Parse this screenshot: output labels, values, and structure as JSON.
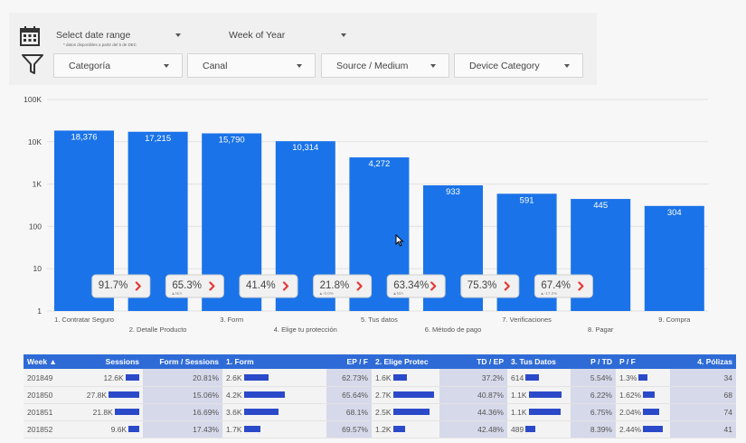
{
  "controls": {
    "date_range": "Select date range",
    "date_note": "* datos disponibles a partir del 5 de DEC",
    "week_of_year": "Week of Year",
    "filters": [
      "Categoría",
      "Canal",
      "Source / Medium",
      "Device Category"
    ]
  },
  "chart_data": {
    "type": "bar",
    "scale": "log",
    "ylim": [
      1,
      100000
    ],
    "y_ticks": [
      "1",
      "10",
      "100",
      "1K",
      "10K",
      "100K"
    ],
    "categories": [
      "1. Contratar Seguro",
      "2. Detalle Producto",
      "3. Form",
      "4. Elige tu protección",
      "5. Tus datos",
      "6. Método de pago",
      "7. Verificaciones",
      "8. Pagar",
      "9. Compra"
    ],
    "values": [
      18376,
      17215,
      15790,
      10314,
      4272,
      933,
      591,
      445,
      304
    ],
    "value_labels": [
      "18,376",
      "17,215",
      "15,790",
      "10,314",
      "4,272",
      "933",
      "591",
      "445",
      "304"
    ],
    "bar_color": "#1a73e8",
    "conversion_badges": [
      {
        "value": "91.7%",
        "note": ""
      },
      {
        "value": "65.3%",
        "note": "▲N/A"
      },
      {
        "value": "41.4%",
        "note": ""
      },
      {
        "value": "21.8%",
        "note": "▲-0.0%"
      },
      {
        "value": "63.34%",
        "note": "▲N/A"
      },
      {
        "value": "75.3%",
        "note": ""
      },
      {
        "value": "67.4%",
        "note": "▲-17.2%"
      }
    ],
    "badge_arrow_color": "#e53935"
  },
  "table": {
    "headers": [
      "Week ▲",
      "Sessions",
      "Form / Sessions",
      "1. Form",
      "EP / F",
      "2. Elige Protec",
      "TD / EP",
      "3. Tus Datos",
      "P / TD",
      "P / F",
      "4. Pólizas"
    ],
    "rows": [
      {
        "week": "201849",
        "sessions": "12.6K",
        "s_bar": 0.45,
        "form_sessions": "20.81%",
        "form": "2.6K",
        "f_bar": 0.6,
        "ep_f": "62.73%",
        "elige": "1.6K",
        "e_bar": 0.35,
        "td_ep": "37.2%",
        "datos": "614",
        "d_bar": 0.4,
        "p_td": "5.54%",
        "p_f": "1.3%",
        "pf_bar": 0.45,
        "polizas": "34"
      },
      {
        "week": "201850",
        "sessions": "27.8K",
        "s_bar": 1.0,
        "form_sessions": "15.06%",
        "form": "4.2K",
        "f_bar": 1.0,
        "ep_f": "65.64%",
        "elige": "2.7K",
        "e_bar": 1.0,
        "td_ep": "40.87%",
        "datos": "1.1K",
        "d_bar": 1.0,
        "p_td": "6.22%",
        "p_f": "1.62%",
        "pf_bar": 0.6,
        "polizas": "68"
      },
      {
        "week": "201851",
        "sessions": "21.8K",
        "s_bar": 0.8,
        "form_sessions": "16.69%",
        "form": "3.6K",
        "f_bar": 0.85,
        "ep_f": "68.1%",
        "elige": "2.5K",
        "e_bar": 0.9,
        "td_ep": "44.36%",
        "datos": "1.1K",
        "d_bar": 0.98,
        "p_td": "6.75%",
        "p_f": "2.04%",
        "pf_bar": 0.8,
        "polizas": "74"
      },
      {
        "week": "201852",
        "sessions": "9.6K",
        "s_bar": 0.35,
        "form_sessions": "17.43%",
        "form": "1.7K",
        "f_bar": 0.4,
        "ep_f": "69.57%",
        "elige": "1.2K",
        "e_bar": 0.3,
        "td_ep": "42.48%",
        "datos": "489",
        "d_bar": 0.3,
        "p_td": "8.39%",
        "p_f": "2.44%",
        "pf_bar": 1.0,
        "polizas": "41"
      }
    ]
  }
}
